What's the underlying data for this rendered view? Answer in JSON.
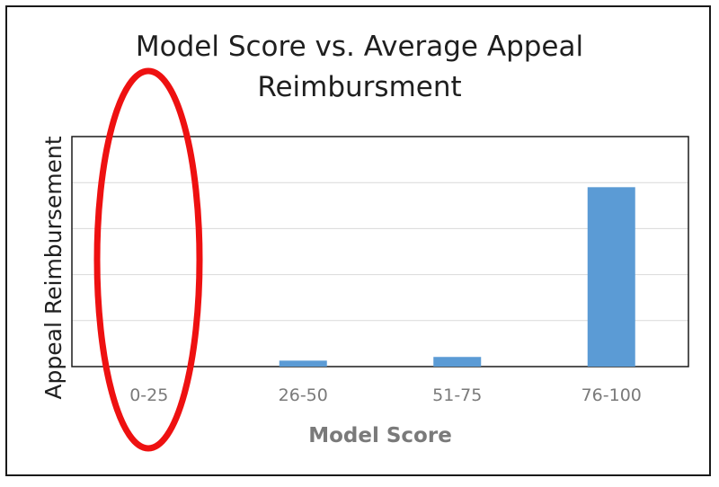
{
  "chart_data": {
    "type": "bar",
    "title_line1": "Model Score vs. Average Appeal",
    "title_line2": "Reimbursment",
    "xlabel": "Model Score",
    "ylabel": "Appeal Reimbursement",
    "categories": [
      "0-25",
      "26-50",
      "51-75",
      "76-100"
    ],
    "values": [
      0,
      2.6,
      4.2,
      78
    ],
    "ylim": [
      0,
      100
    ],
    "grid": true,
    "y_tick_labels_shown": false,
    "bar_color": "#5b9bd5",
    "highlight": {
      "category": "0-25",
      "shape": "ellipse",
      "color": "#ee1111"
    }
  }
}
